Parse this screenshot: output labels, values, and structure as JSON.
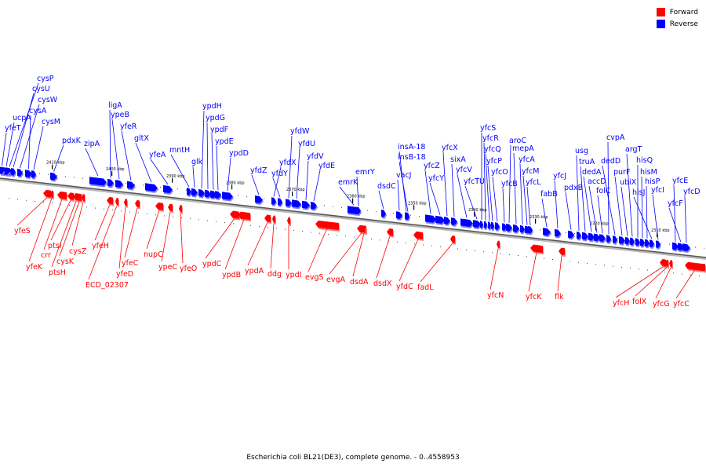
{
  "legend": [
    {
      "label": "Forward",
      "color": "#ff0000"
    },
    {
      "label": "Reverse",
      "color": "#0000ff"
    }
  ],
  "caption": "Escherichia coli BL21(DE3), complete genome. - 0..4558953",
  "scale_labels": [
    "2410 kbp",
    "2400 kbp",
    "2390 kbp",
    "2380 kbp",
    "2370 kbp",
    "2360 kbp",
    "2350 kbp",
    "2340 kbp",
    "2330 kbp",
    "2320 kbp",
    "2310 kbp"
  ],
  "reverse_genes": [
    "cysP",
    "cysU",
    "cysW",
    "cysA",
    "cysM",
    "ucpA",
    "yfeT",
    "pdxK",
    "zipA",
    "ligA",
    "ypeB",
    "yfeR",
    "gltX",
    "yfeA",
    "mntH",
    "glk",
    "ypdH",
    "ypdG",
    "ypdF",
    "ypdE",
    "ypdD",
    "yfdZ",
    "yfdX",
    "yfdY",
    "yfdW",
    "yfdU",
    "yfdV",
    "yfdE",
    "emrK",
    "emrY",
    "dsdC",
    "vacJ",
    "insA-18",
    "insB-18",
    "yfcZ",
    "yfcY",
    "yfcX",
    "sixA",
    "yfcV",
    "yfcTU",
    "yfcS",
    "yfcR",
    "yfcQ",
    "yfcP",
    "yfcO",
    "yfcB",
    "aroC",
    "mepA",
    "yfcA",
    "yfcM",
    "yfcL",
    "fabB",
    "yfcJ",
    "pdxB",
    "usg",
    "truA",
    "dedA",
    "accD",
    "folC",
    "cvpA",
    "dedD",
    "purF",
    "ubiX",
    "argT",
    "hisQ",
    "hisM",
    "hisP",
    "hisJ",
    "yfcI",
    "yfcE",
    "yfcF",
    "yfcD"
  ],
  "forward_genes": [
    "yfeS",
    "yfeK",
    "crr",
    "ptsI",
    "ptsH",
    "cysK",
    "cysZ",
    "yfeH",
    "ECD_02307",
    "yfeD",
    "yfeC",
    "nupC",
    "ypeC",
    "yfeO",
    "ypdC",
    "ypdB",
    "ypdA",
    "ddg",
    "ypdI",
    "evgS",
    "evgA",
    "dsdA",
    "dsdX",
    "yfdC",
    "fadL",
    "yfcN",
    "yfcK",
    "flk",
    "yfcH",
    "folX",
    "yfcG",
    "yfcC"
  ]
}
